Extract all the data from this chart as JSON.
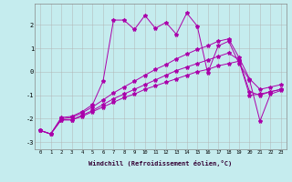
{
  "xlabel": "Windchill (Refroidissement éolien,°C)",
  "xlim": [
    -0.5,
    23.5
  ],
  "ylim": [
    -3.3,
    2.9
  ],
  "xticks": [
    0,
    1,
    2,
    3,
    4,
    5,
    6,
    7,
    8,
    9,
    10,
    11,
    12,
    13,
    14,
    15,
    16,
    17,
    18,
    19,
    20,
    21,
    22,
    23
  ],
  "yticks": [
    -3,
    -2,
    -1,
    0,
    1,
    2
  ],
  "background_color": "#c5ecee",
  "line_color": "#aa00aa",
  "grid_color": "#b0b0b0",
  "line1_x": [
    0,
    1,
    2,
    3,
    4,
    5,
    6,
    7,
    8,
    9,
    10,
    11,
    12,
    13,
    14,
    15,
    16,
    17,
    18,
    19,
    20,
    21,
    22,
    23
  ],
  "line1_y": [
    -2.5,
    -2.65,
    -2.05,
    -2.05,
    -1.9,
    -1.7,
    -1.5,
    -1.3,
    -1.1,
    -0.95,
    -0.75,
    -0.6,
    -0.45,
    -0.3,
    -0.15,
    0.0,
    0.1,
    0.25,
    0.35,
    0.45,
    -1.0,
    -0.95,
    -0.85,
    -0.75
  ],
  "line2_x": [
    0,
    1,
    2,
    3,
    4,
    5,
    6,
    7,
    8,
    9,
    10,
    11,
    12,
    13,
    14,
    15,
    16,
    17,
    18,
    19,
    20,
    21,
    22,
    23
  ],
  "line2_y": [
    -2.5,
    -2.65,
    -2.05,
    -2.05,
    -1.85,
    -1.65,
    -1.4,
    -1.15,
    -0.95,
    -0.75,
    -0.55,
    -0.35,
    -0.15,
    0.05,
    0.2,
    0.35,
    0.5,
    0.65,
    0.8,
    0.5,
    -0.85,
    -1.0,
    -0.85,
    -0.75
  ],
  "line3_x": [
    0,
    1,
    2,
    3,
    4,
    5,
    6,
    7,
    8,
    9,
    10,
    11,
    12,
    13,
    14,
    15,
    16,
    17,
    18,
    19,
    20,
    21,
    22,
    23
  ],
  "line3_y": [
    -2.5,
    -2.65,
    -2.0,
    -1.95,
    -1.75,
    -1.5,
    -1.2,
    -0.9,
    -0.65,
    -0.4,
    -0.15,
    0.1,
    0.3,
    0.55,
    0.75,
    0.95,
    1.1,
    1.3,
    1.4,
    0.6,
    -0.3,
    -0.75,
    -0.65,
    -0.55
  ],
  "line4_x": [
    0,
    1,
    2,
    3,
    4,
    5,
    6,
    7,
    8,
    9,
    10,
    11,
    12,
    13,
    14,
    15,
    16,
    17,
    18,
    19,
    20,
    21,
    22,
    23
  ],
  "line4_y": [
    -2.5,
    -2.65,
    -1.95,
    -1.9,
    -1.7,
    -1.4,
    -0.4,
    2.2,
    2.2,
    1.8,
    2.4,
    1.85,
    2.1,
    1.6,
    2.5,
    1.95,
    -0.05,
    1.1,
    1.3,
    0.35,
    -0.35,
    -2.1,
    -0.95,
    -0.8
  ]
}
